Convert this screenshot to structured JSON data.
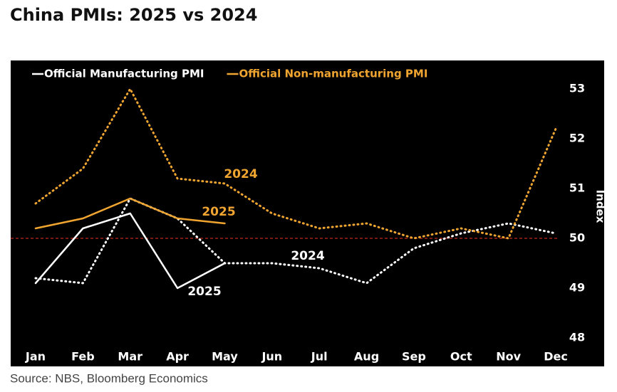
{
  "chart_data": {
    "type": "line",
    "title": "China PMIs: 2025 vs 2024",
    "source": "Source: NBS, Bloomberg Economics",
    "y_axis_label": "Index",
    "categories": [
      "Jan",
      "Feb",
      "Mar",
      "Apr",
      "May",
      "Jun",
      "Jul",
      "Aug",
      "Sep",
      "Oct",
      "Nov",
      "Dec"
    ],
    "series": [
      {
        "name": "Official Manufacturing PMI",
        "label": "2024",
        "style": "dotted",
        "color": "#ffffff",
        "values": [
          49.2,
          49.1,
          50.8,
          50.4,
          49.5,
          49.5,
          49.4,
          49.1,
          49.8,
          50.1,
          50.3,
          50.1
        ]
      },
      {
        "name": "Official Manufacturing PMI",
        "label": "2025",
        "style": "solid",
        "color": "#ffffff",
        "values": [
          49.1,
          50.2,
          50.5,
          49.0,
          49.5,
          null,
          null,
          null,
          null,
          null,
          null,
          null
        ]
      },
      {
        "name": "Official Non-manufacturing PMI",
        "label": "2024",
        "style": "dotted",
        "color": "#f0a530",
        "values": [
          50.7,
          51.4,
          53.0,
          51.2,
          51.1,
          50.5,
          50.2,
          50.3,
          50.0,
          50.2,
          50.0,
          52.2
        ]
      },
      {
        "name": "Official Non-manufacturing PMI",
        "label": "2025",
        "style": "solid",
        "color": "#f0a530",
        "values": [
          50.2,
          50.4,
          50.8,
          50.4,
          50.3,
          null,
          null,
          null,
          null,
          null,
          null,
          null
        ]
      }
    ],
    "ylim": [
      48,
      53
    ],
    "yticks": [
      48,
      49,
      50,
      51,
      52,
      53
    ],
    "y_axis_side": "right",
    "reference_line": 50,
    "reference_line_color": "#c0281e",
    "grid": false,
    "legend": "top-left"
  }
}
